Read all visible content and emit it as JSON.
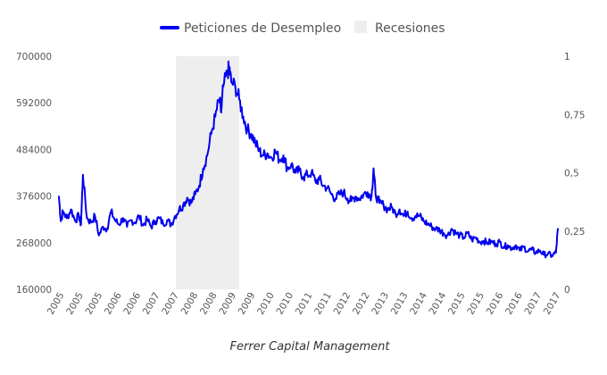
{
  "chart_data": {
    "type": "line",
    "caption": "Ferrer Capital Management",
    "legend": {
      "placement": "top-center",
      "entries": [
        {
          "label": "Peticiones de Desempleo",
          "kind": "line",
          "color": "#0000ee"
        },
        {
          "label": "Recesiones",
          "kind": "area",
          "color": "#eeeeee"
        }
      ]
    },
    "y_left": {
      "min": 160000,
      "max": 700000,
      "ticks": [
        "700000",
        "592000",
        "484000",
        "376000",
        "268000",
        "160000"
      ]
    },
    "y_right": {
      "min": 0,
      "max": 1,
      "ticks": [
        "1",
        "0,75",
        "0,5",
        "0,25",
        "0"
      ]
    },
    "x_ticks": [
      "2005",
      "2005",
      "2005",
      "2006",
      "2006",
      "2007",
      "2007",
      "2008",
      "2008",
      "2009",
      "2009",
      "2010",
      "2010",
      "2011",
      "2011",
      "2012",
      "2012",
      "2013",
      "2013",
      "2014",
      "2014",
      "2015",
      "2015",
      "2016",
      "2016",
      "2017",
      "2017"
    ],
    "recession": {
      "start": 2007.92,
      "end": 2009.5,
      "value": 1
    },
    "series": [
      {
        "name": "Peticiones de Desempleo",
        "color": "#0000ee",
        "x": [
          2005.0,
          2005.05,
          2005.1,
          2005.2,
          2005.3,
          2005.4,
          2005.5,
          2005.55,
          2005.6,
          2005.7,
          2005.8,
          2005.9,
          2006.0,
          2006.1,
          2006.2,
          2006.3,
          2006.4,
          2006.5,
          2006.6,
          2006.7,
          2006.8,
          2006.9,
          2007.0,
          2007.1,
          2007.2,
          2007.3,
          2007.4,
          2007.5,
          2007.6,
          2007.7,
          2007.8,
          2007.9,
          2008.0,
          2008.1,
          2008.2,
          2008.3,
          2008.4,
          2008.5,
          2008.6,
          2008.7,
          2008.8,
          2008.9,
          2009.0,
          2009.05,
          2009.1,
          2009.2,
          2009.25,
          2009.3,
          2009.4,
          2009.5,
          2009.6,
          2009.7,
          2009.8,
          2009.9,
          2010.0,
          2010.1,
          2010.2,
          2010.3,
          2010.4,
          2010.5,
          2010.6,
          2010.7,
          2010.8,
          2010.9,
          2011.0,
          2011.1,
          2011.2,
          2011.3,
          2011.4,
          2011.5,
          2011.6,
          2011.7,
          2011.8,
          2011.9,
          2012.0,
          2012.1,
          2012.2,
          2012.3,
          2012.4,
          2012.5,
          2012.6,
          2012.7,
          2012.8,
          2012.85,
          2012.9,
          2013.0,
          2013.1,
          2013.2,
          2013.3,
          2013.4,
          2013.5,
          2013.6,
          2013.7,
          2013.8,
          2013.9,
          2014.0,
          2014.1,
          2014.2,
          2014.3,
          2014.4,
          2014.5,
          2014.6,
          2014.7,
          2014.8,
          2014.9,
          2015.0,
          2015.1,
          2015.2,
          2015.3,
          2015.4,
          2015.5,
          2015.6,
          2015.7,
          2015.8,
          2015.9,
          2016.0,
          2016.1,
          2016.2,
          2016.3,
          2016.4,
          2016.5,
          2016.6,
          2016.7,
          2016.8,
          2016.9,
          2017.0,
          2017.1,
          2017.2,
          2017.3,
          2017.4,
          2017.45
        ],
        "values": [
          375000,
          318000,
          340000,
          325000,
          345000,
          320000,
          330000,
          310000,
          425000,
          325000,
          315000,
          330000,
          285000,
          305000,
          300000,
          340000,
          320000,
          310000,
          325000,
          305000,
          320000,
          315000,
          330000,
          308000,
          322000,
          305000,
          318000,
          325000,
          312000,
          320000,
          310000,
          330000,
          345000,
          355000,
          372000,
          360000,
          380000,
          400000,
          440000,
          470000,
          520000,
          560000,
          600000,
          570000,
          630000,
          660000,
          675000,
          640000,
          630000,
          600000,
          560000,
          530000,
          520000,
          500000,
          480000,
          470000,
          475000,
          465000,
          480000,
          460000,
          470000,
          440000,
          450000,
          430000,
          435000,
          420000,
          425000,
          430000,
          410000,
          415000,
          400000,
          395000,
          380000,
          370000,
          380000,
          385000,
          370000,
          365000,
          375000,
          370000,
          380000,
          385000,
          375000,
          440000,
          380000,
          360000,
          355000,
          345000,
          350000,
          335000,
          345000,
          330000,
          340000,
          325000,
          330000,
          330000,
          318000,
          312000,
          305000,
          300000,
          298000,
          290000,
          285000,
          300000,
          290000,
          285000,
          280000,
          290000,
          275000,
          280000,
          270000,
          272000,
          268000,
          270000,
          265000,
          270000,
          258000,
          262000,
          255000,
          262000,
          250000,
          258000,
          248000,
          252000,
          245000,
          250000,
          240000,
          242000,
          238000,
          245000,
          300000
        ]
      }
    ]
  }
}
